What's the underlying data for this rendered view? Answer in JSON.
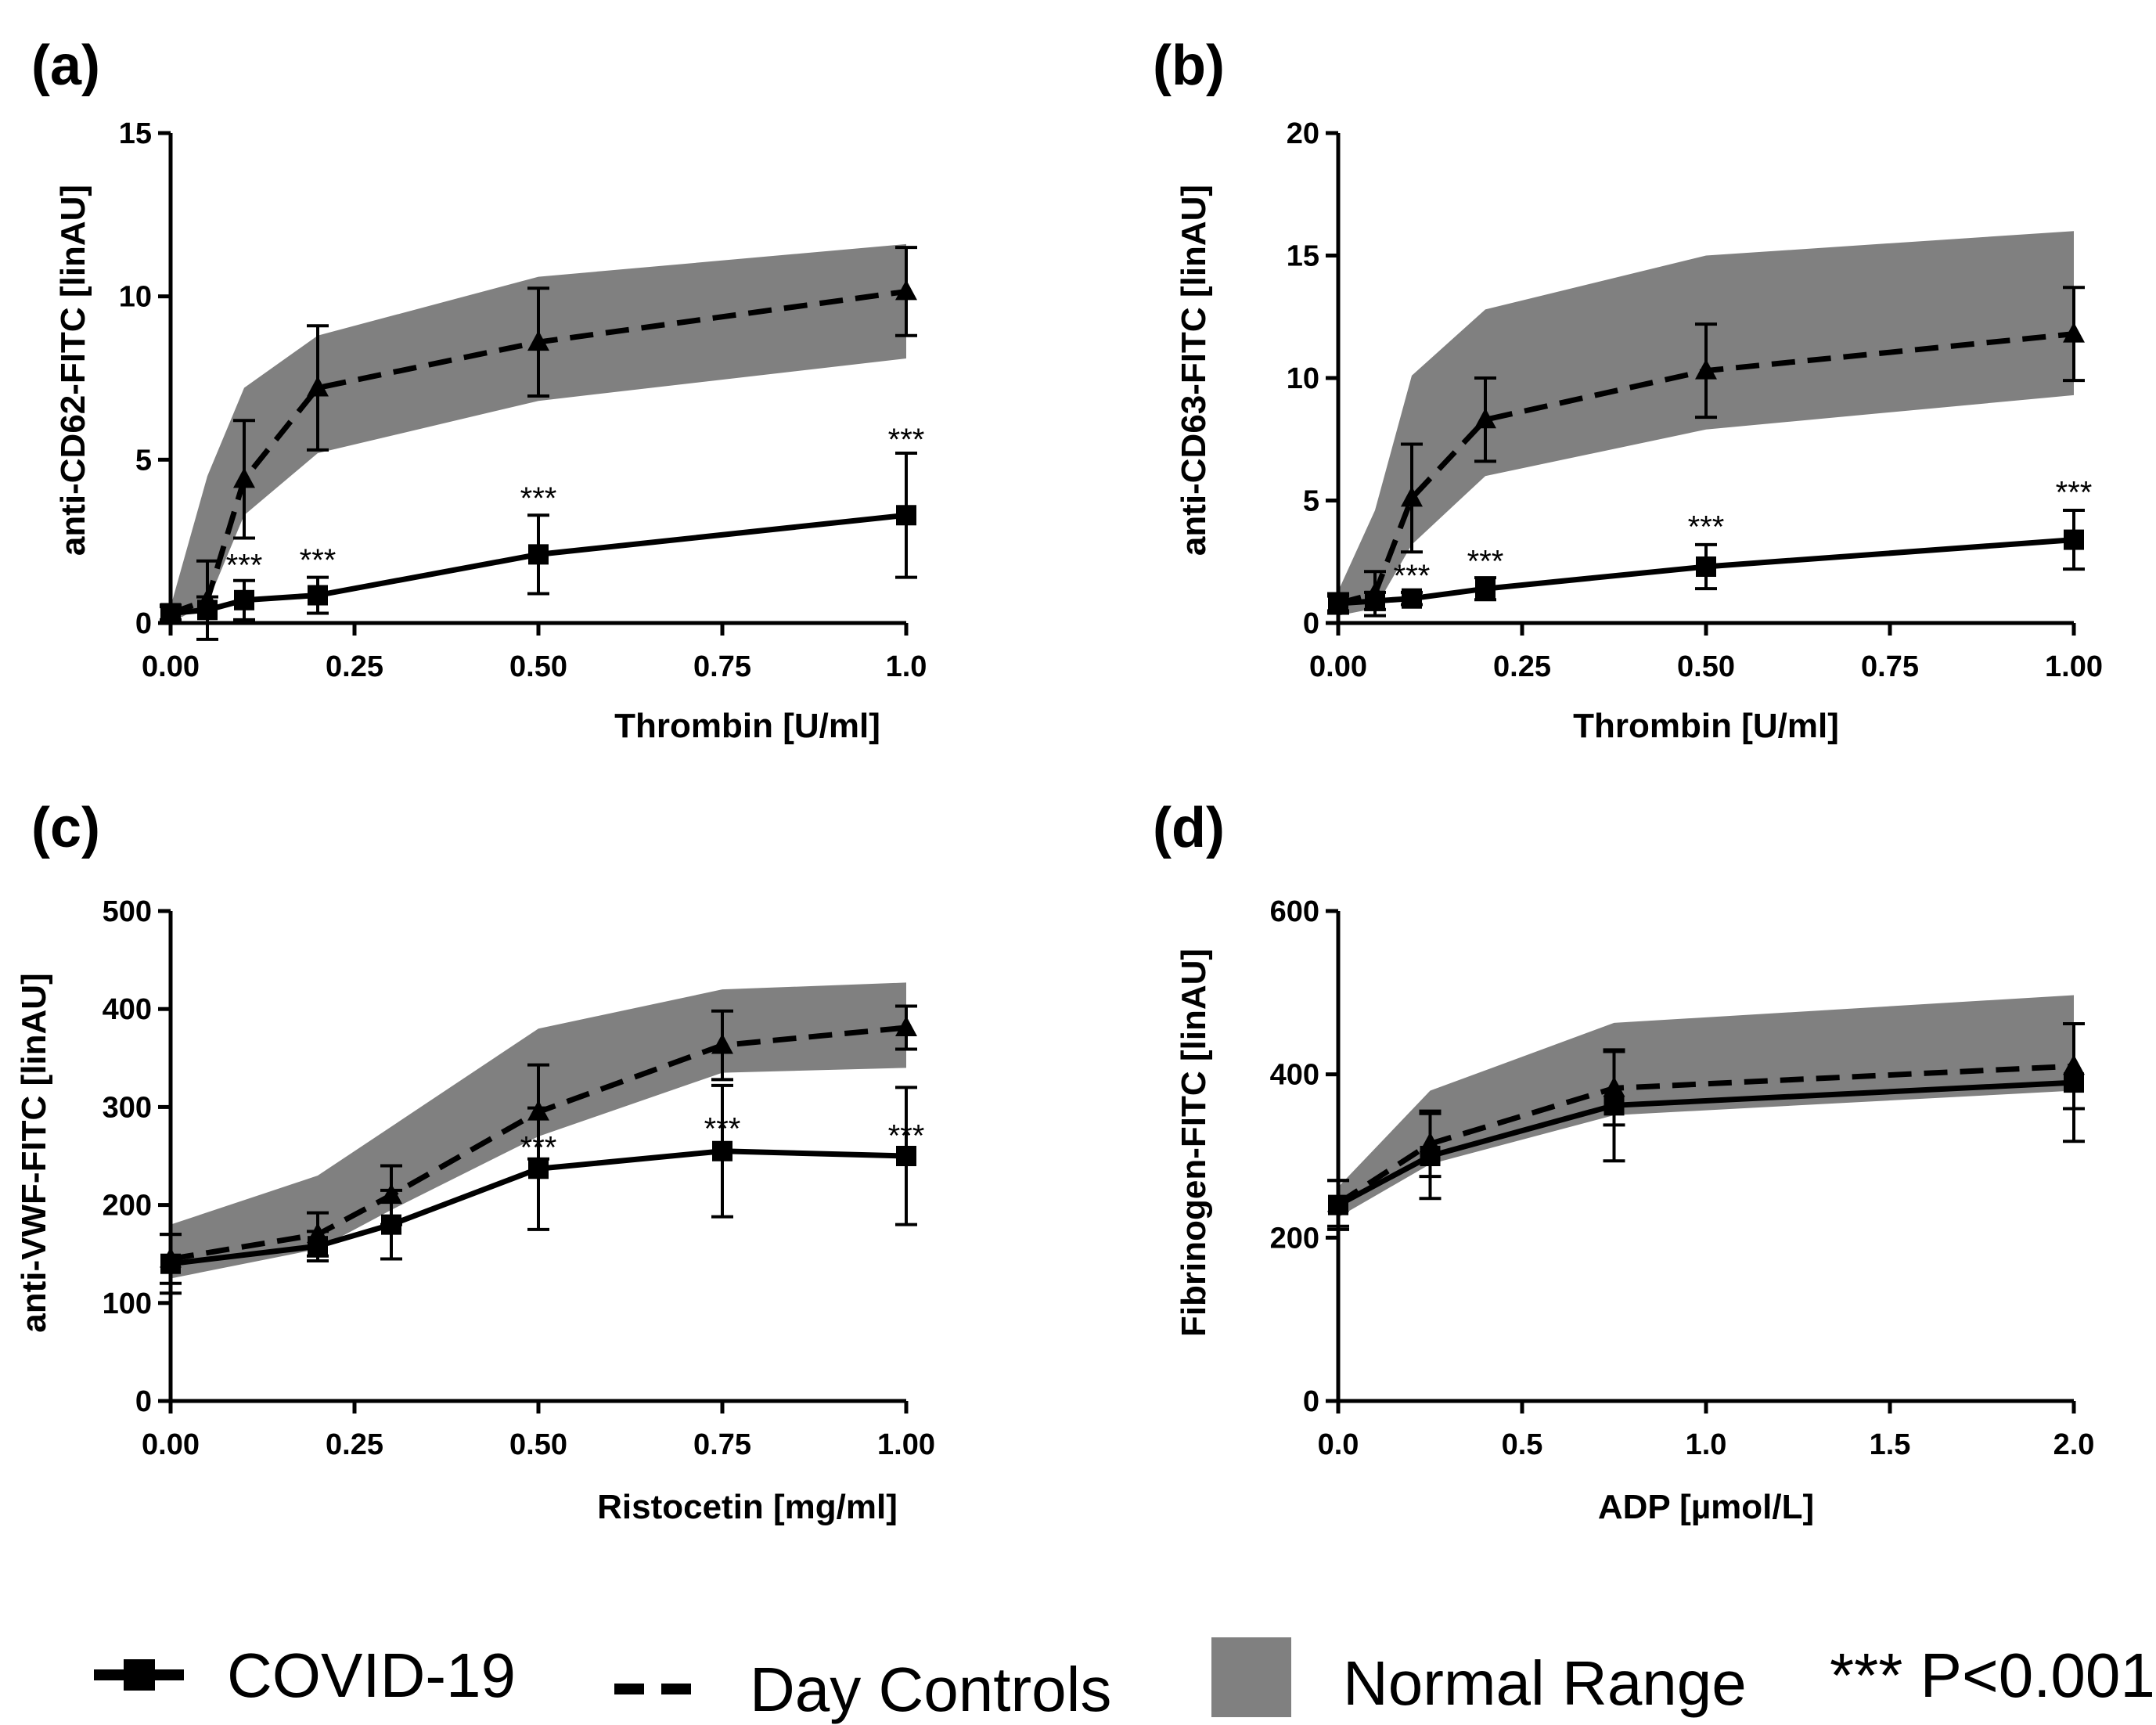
{
  "legend": {
    "covid_label": "COVID-19",
    "control_label": "Day Controls",
    "range_label": "Normal Range",
    "sig_label": "*** P<0.001"
  },
  "colors": {
    "band": "#808080",
    "line": "#000000",
    "background": "#ffffff"
  },
  "chart_data": [
    {
      "type": "line",
      "panel": "(a)",
      "xlabel": "Thrombin [U/ml]",
      "ylabel": "anti-CD62-FITC [linAU]",
      "xlim": [
        0,
        1
      ],
      "ylim": [
        0,
        15
      ],
      "xticks": [
        0,
        0.25,
        0.5,
        0.75,
        1.0
      ],
      "xtick_labels": [
        "0.00",
        "0.25",
        "0.50",
        "0.75",
        "1.0"
      ],
      "yticks": [
        0,
        5,
        10,
        15
      ],
      "ytick_labels": [
        "0",
        "5",
        "10",
        "15"
      ],
      "series": [
        {
          "name": "COVID-19",
          "x": [
            0,
            0.05,
            0.1,
            0.2,
            0.5,
            1.0
          ],
          "values": [
            0.3,
            0.4,
            0.7,
            0.85,
            2.1,
            3.3
          ],
          "err": [
            0.2,
            0.4,
            0.6,
            0.55,
            1.2,
            1.9
          ],
          "marker": "square",
          "dash": "solid"
        },
        {
          "name": "Day Controls",
          "x": [
            0,
            0.05,
            0.1,
            0.2,
            0.5,
            1.0
          ],
          "values": [
            0.3,
            0.7,
            4.4,
            7.2,
            8.6,
            10.15
          ],
          "err": [
            0.25,
            1.2,
            1.8,
            1.9,
            1.65,
            1.35
          ],
          "marker": "triangle",
          "dash": "dashed"
        }
      ],
      "band": {
        "name": "Normal Range",
        "x": [
          0,
          0.05,
          0.1,
          0.2,
          0.5,
          1.0
        ],
        "lower": [
          0.0,
          0.6,
          3.3,
          5.2,
          6.8,
          8.1
        ],
        "upper": [
          0.5,
          4.5,
          7.2,
          8.8,
          10.6,
          11.6
        ]
      },
      "annotations": [
        {
          "text": "***",
          "x": 0.1,
          "y": 1.45
        },
        {
          "text": "***",
          "x": 0.2,
          "y": 1.6
        },
        {
          "text": "***",
          "x": 0.5,
          "y": 3.5
        },
        {
          "text": "***",
          "x": 1.0,
          "y": 5.3
        }
      ]
    },
    {
      "type": "line",
      "panel": "(b)",
      "xlabel": "Thrombin [U/ml]",
      "ylabel": "anti-CD63-FITC [linAU]",
      "xlim": [
        0,
        1
      ],
      "ylim": [
        0,
        20
      ],
      "xticks": [
        0,
        0.25,
        0.5,
        0.75,
        1.0
      ],
      "xtick_labels": [
        "0.00",
        "0.25",
        "0.50",
        "0.75",
        "1.00"
      ],
      "yticks": [
        0,
        5,
        10,
        15,
        20
      ],
      "ytick_labels": [
        "0",
        "5",
        "10",
        "15",
        "20"
      ],
      "series": [
        {
          "name": "COVID-19",
          "x": [
            0,
            0.05,
            0.1,
            0.2,
            0.5,
            1.0
          ],
          "values": [
            0.8,
            0.9,
            1.0,
            1.4,
            2.3,
            3.4
          ],
          "err": [
            0.3,
            0.35,
            0.25,
            0.45,
            0.9,
            1.2
          ],
          "marker": "square",
          "dash": "solid"
        },
        {
          "name": "Day Controls",
          "x": [
            0,
            0.05,
            0.1,
            0.2,
            0.5,
            1.0
          ],
          "values": [
            0.8,
            1.2,
            5.1,
            8.3,
            10.3,
            11.8
          ],
          "err": [
            0.4,
            0.9,
            2.2,
            1.7,
            1.9,
            1.9
          ],
          "marker": "triangle",
          "dash": "dashed"
        }
      ],
      "band": {
        "name": "Normal Range",
        "x": [
          0,
          0.05,
          0.1,
          0.2,
          0.5,
          1.0
        ],
        "lower": [
          0.3,
          0.6,
          3.2,
          6.0,
          7.9,
          9.3
        ],
        "upper": [
          1.3,
          4.6,
          10.1,
          12.8,
          15.0,
          16.0
        ]
      },
      "annotations": [
        {
          "text": "***",
          "x": 0.1,
          "y": 1.5
        },
        {
          "text": "***",
          "x": 0.2,
          "y": 2.1
        },
        {
          "text": "***",
          "x": 0.5,
          "y": 3.5
        },
        {
          "text": "***",
          "x": 1.0,
          "y": 4.9
        }
      ]
    },
    {
      "type": "line",
      "panel": "(c)",
      "xlabel": "Ristocetin [mg/ml]",
      "ylabel": "anti-VWF-FITC [linAU]",
      "xlim": [
        0,
        1
      ],
      "ylim": [
        0,
        500
      ],
      "xticks": [
        0,
        0.25,
        0.5,
        0.75,
        1.0
      ],
      "xtick_labels": [
        "0.00",
        "0.25",
        "0.50",
        "0.75",
        "1.00"
      ],
      "yticks": [
        0,
        100,
        200,
        300,
        400,
        500
      ],
      "ytick_labels": [
        "0",
        "100",
        "200",
        "300",
        "400",
        "500"
      ],
      "series": [
        {
          "name": "COVID-19",
          "x": [
            0,
            0.2,
            0.3,
            0.5,
            0.75,
            1.0
          ],
          "values": [
            140,
            158,
            180,
            237,
            255,
            250
          ],
          "err": [
            30,
            15,
            35,
            62,
            67,
            70
          ],
          "marker": "square",
          "dash": "solid"
        },
        {
          "name": "Day Controls",
          "x": [
            0,
            0.2,
            0.3,
            0.5,
            0.75,
            1.0
          ],
          "values": [
            145,
            170,
            210,
            295,
            363,
            381
          ],
          "err": [
            25,
            22,
            30,
            48,
            35,
            22
          ],
          "marker": "triangle",
          "dash": "dashed"
        }
      ],
      "band": {
        "name": "Normal Range",
        "x": [
          0,
          0.2,
          0.3,
          0.5,
          0.75,
          1.0
        ],
        "lower": [
          125,
          155,
          195,
          270,
          335,
          340
        ],
        "upper": [
          180,
          230,
          280,
          380,
          420,
          427
        ]
      },
      "annotations": [
        {
          "text": "***",
          "x": 0.5,
          "y": 248
        },
        {
          "text": "***",
          "x": 0.75,
          "y": 267
        },
        {
          "text": "***",
          "x": 1.0,
          "y": 260
        }
      ]
    },
    {
      "type": "line",
      "panel": "(d)",
      "xlabel": "ADP [µmol/L]",
      "ylabel": "Fibrinogen-FITC [linAU]",
      "xlim": [
        0,
        2
      ],
      "ylim": [
        0,
        600
      ],
      "xticks": [
        0,
        0.5,
        1.0,
        1.5,
        2.0
      ],
      "xtick_labels": [
        "0.0",
        "0.5",
        "1.0",
        "1.5",
        "2.0"
      ],
      "yticks": [
        0,
        200,
        400,
        600
      ],
      "ytick_labels": [
        "0",
        "200",
        "400",
        "600"
      ],
      "series": [
        {
          "name": "COVID-19",
          "x": [
            0,
            0.25,
            0.75,
            2.0
          ],
          "values": [
            240,
            300,
            362,
            390
          ],
          "err": [
            30,
            52,
            68,
            72
          ],
          "marker": "square",
          "dash": "solid"
        },
        {
          "name": "Day Controls",
          "x": [
            0,
            0.25,
            0.75,
            2.0
          ],
          "values": [
            242,
            315,
            383,
            410
          ],
          "err": [
            28,
            40,
            45,
            52
          ],
          "marker": "triangle",
          "dash": "dashed"
        }
      ],
      "band": {
        "name": "Normal Range",
        "x": [
          0,
          0.25,
          0.75,
          2.0
        ],
        "lower": [
          225,
          290,
          350,
          380
        ],
        "upper": [
          262,
          380,
          463,
          497
        ]
      },
      "annotations": []
    }
  ]
}
